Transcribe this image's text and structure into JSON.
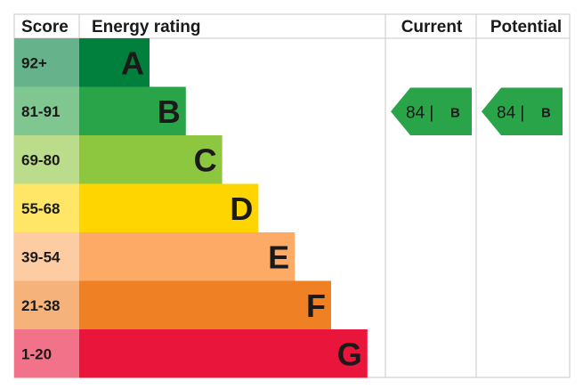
{
  "chart_data": {
    "type": "bar",
    "headers": {
      "score": "Score",
      "rating": "Energy rating",
      "current": "Current",
      "potential": "Potential"
    },
    "bands": [
      {
        "letter": "A",
        "range": "92+",
        "color": "#007f3d",
        "score_color": "#66b28b"
      },
      {
        "letter": "B",
        "range": "81-91",
        "color": "#2aa448",
        "score_color": "#7fc691"
      },
      {
        "letter": "C",
        "range": "69-80",
        "color": "#8dc63f",
        "score_color": "#bbdc8b"
      },
      {
        "letter": "D",
        "range": "55-68",
        "color": "#ffd500",
        "score_color": "#ffe666"
      },
      {
        "letter": "E",
        "range": "39-54",
        "color": "#fcaa65",
        "score_color": "#fdcca3"
      },
      {
        "letter": "F",
        "range": "21-38",
        "color": "#ef8023",
        "score_color": "#f5b37b"
      },
      {
        "letter": "G",
        "range": "1-20",
        "color": "#e9153b",
        "score_color": "#f27389"
      }
    ],
    "current": {
      "value": 84,
      "band": "B",
      "label": "84 |",
      "color": "#2aa448"
    },
    "potential": {
      "value": 84,
      "band": "B",
      "label": "84 |",
      "color": "#2aa448"
    }
  }
}
